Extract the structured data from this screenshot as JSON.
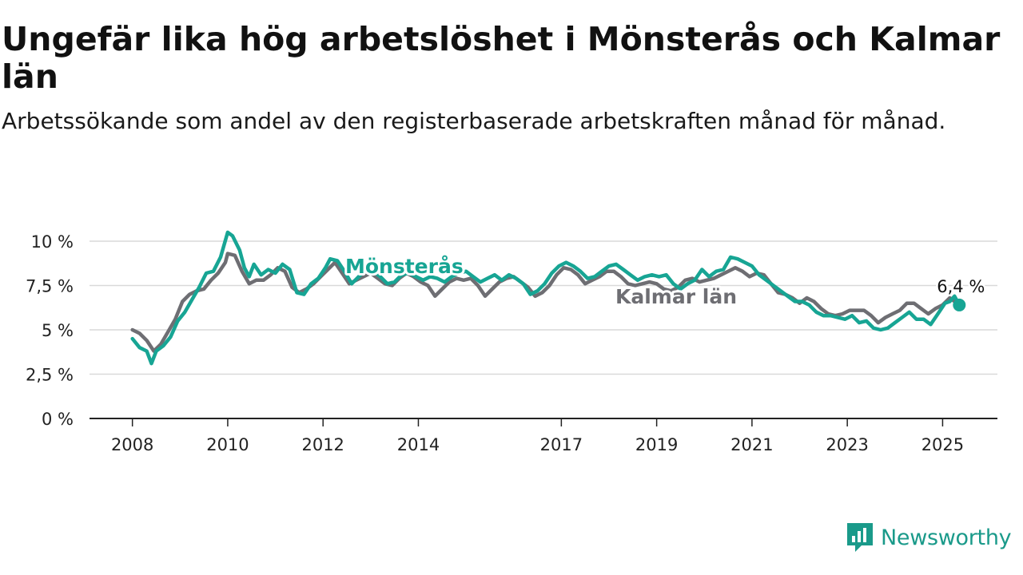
{
  "header": {
    "title": "Ungefär lika hög arbetslöshet i Mönsterås och Kalmar län",
    "subtitle": "Arbetssökande som andel av den registerbaserade arbetskraften månad för månad."
  },
  "brand": {
    "name": "Newsworthy",
    "icon": "newsworthy-logo-icon",
    "color": "#1a9a8a"
  },
  "chart_data": {
    "type": "line",
    "ylim": [
      0,
      10.5
    ],
    "y_ticks": [
      {
        "value": 0,
        "label": "0 %"
      },
      {
        "value": 2.5,
        "label": "2,5 %"
      },
      {
        "value": 5,
        "label": "5 %"
      },
      {
        "value": 7.5,
        "label": "7,5 %"
      },
      {
        "value": 10,
        "label": "10 %"
      }
    ],
    "x_ticks": [
      {
        "value": 2008,
        "label": "2008"
      },
      {
        "value": 2010,
        "label": "2010"
      },
      {
        "value": 2012,
        "label": "2012"
      },
      {
        "value": 2014,
        "label": "2014"
      },
      {
        "value": 2017,
        "label": "2017"
      },
      {
        "value": 2019,
        "label": "2019"
      },
      {
        "value": 2021,
        "label": "2021"
      },
      {
        "value": 2023,
        "label": "2023"
      },
      {
        "value": 2025,
        "label": "2025"
      }
    ],
    "xlim": [
      2007.1,
      2026.15
    ],
    "grid": true,
    "end_label": "6,4 %",
    "series": [
      {
        "name": "Kalmar län",
        "color": "#6e6e73",
        "label_position": "below",
        "points": [
          [
            2008.0,
            5.0
          ],
          [
            2008.15,
            4.8
          ],
          [
            2008.3,
            4.4
          ],
          [
            2008.45,
            3.8
          ],
          [
            2008.6,
            4.2
          ],
          [
            2008.75,
            4.9
          ],
          [
            2008.9,
            5.6
          ],
          [
            2009.05,
            6.6
          ],
          [
            2009.2,
            7.0
          ],
          [
            2009.35,
            7.2
          ],
          [
            2009.5,
            7.3
          ],
          [
            2009.65,
            7.8
          ],
          [
            2009.8,
            8.2
          ],
          [
            2009.95,
            8.8
          ],
          [
            2010.0,
            9.3
          ],
          [
            2010.15,
            9.2
          ],
          [
            2010.3,
            8.3
          ],
          [
            2010.45,
            7.6
          ],
          [
            2010.6,
            7.8
          ],
          [
            2010.75,
            7.8
          ],
          [
            2010.9,
            8.1
          ],
          [
            2011.05,
            8.5
          ],
          [
            2011.2,
            8.3
          ],
          [
            2011.35,
            7.4
          ],
          [
            2011.5,
            7.1
          ],
          [
            2011.65,
            7.3
          ],
          [
            2011.8,
            7.6
          ],
          [
            2011.95,
            8.0
          ],
          [
            2012.1,
            8.4
          ],
          [
            2012.25,
            8.8
          ],
          [
            2012.4,
            8.2
          ],
          [
            2012.55,
            7.6
          ],
          [
            2012.7,
            7.8
          ],
          [
            2012.85,
            8.0
          ],
          [
            2013.0,
            8.2
          ],
          [
            2013.15,
            7.9
          ],
          [
            2013.3,
            7.6
          ],
          [
            2013.45,
            7.5
          ],
          [
            2013.6,
            7.9
          ],
          [
            2013.75,
            8.2
          ],
          [
            2013.9,
            8.0
          ],
          [
            2014.05,
            7.7
          ],
          [
            2014.2,
            7.5
          ],
          [
            2014.35,
            6.9
          ],
          [
            2014.5,
            7.3
          ],
          [
            2014.65,
            7.7
          ],
          [
            2014.8,
            7.9
          ],
          [
            2014.95,
            7.8
          ],
          [
            2015.1,
            7.9
          ],
          [
            2015.25,
            7.5
          ],
          [
            2015.4,
            6.9
          ],
          [
            2015.55,
            7.3
          ],
          [
            2015.7,
            7.7
          ],
          [
            2015.85,
            7.9
          ],
          [
            2016.0,
            8.0
          ],
          [
            2016.15,
            7.7
          ],
          [
            2016.3,
            7.4
          ],
          [
            2016.45,
            6.9
          ],
          [
            2016.6,
            7.1
          ],
          [
            2016.75,
            7.5
          ],
          [
            2016.9,
            8.1
          ],
          [
            2017.05,
            8.5
          ],
          [
            2017.2,
            8.4
          ],
          [
            2017.35,
            8.1
          ],
          [
            2017.5,
            7.6
          ],
          [
            2017.65,
            7.8
          ],
          [
            2017.8,
            8.0
          ],
          [
            2017.95,
            8.3
          ],
          [
            2018.1,
            8.3
          ],
          [
            2018.25,
            8.0
          ],
          [
            2018.4,
            7.6
          ],
          [
            2018.55,
            7.5
          ],
          [
            2018.7,
            7.6
          ],
          [
            2018.85,
            7.7
          ],
          [
            2019.0,
            7.6
          ],
          [
            2019.15,
            7.3
          ],
          [
            2019.3,
            7.2
          ],
          [
            2019.45,
            7.4
          ],
          [
            2019.6,
            7.8
          ],
          [
            2019.75,
            7.9
          ],
          [
            2019.9,
            7.7
          ],
          [
            2020.05,
            7.8
          ],
          [
            2020.2,
            7.9
          ],
          [
            2020.35,
            8.1
          ],
          [
            2020.5,
            8.3
          ],
          [
            2020.65,
            8.5
          ],
          [
            2020.8,
            8.3
          ],
          [
            2020.95,
            8.0
          ],
          [
            2021.1,
            8.2
          ],
          [
            2021.25,
            8.1
          ],
          [
            2021.4,
            7.6
          ],
          [
            2021.55,
            7.1
          ],
          [
            2021.7,
            7.0
          ],
          [
            2021.85,
            6.8
          ],
          [
            2022.0,
            6.5
          ],
          [
            2022.15,
            6.8
          ],
          [
            2022.3,
            6.6
          ],
          [
            2022.45,
            6.2
          ],
          [
            2022.6,
            5.9
          ],
          [
            2022.75,
            5.8
          ],
          [
            2022.9,
            5.9
          ],
          [
            2023.05,
            6.1
          ],
          [
            2023.2,
            6.1
          ],
          [
            2023.35,
            6.1
          ],
          [
            2023.5,
            5.8
          ],
          [
            2023.65,
            5.4
          ],
          [
            2023.8,
            5.7
          ],
          [
            2023.95,
            5.9
          ],
          [
            2024.1,
            6.1
          ],
          [
            2024.25,
            6.5
          ],
          [
            2024.4,
            6.5
          ],
          [
            2024.55,
            6.2
          ],
          [
            2024.7,
            5.9
          ],
          [
            2024.85,
            6.2
          ],
          [
            2025.0,
            6.4
          ],
          [
            2025.15,
            6.8
          ],
          [
            2025.25,
            6.6
          ]
        ]
      },
      {
        "name": "Mönsterås",
        "color": "#17a594",
        "label_position": "above",
        "points": [
          [
            2008.0,
            4.5
          ],
          [
            2008.15,
            4.0
          ],
          [
            2008.3,
            3.8
          ],
          [
            2008.4,
            3.1
          ],
          [
            2008.5,
            3.8
          ],
          [
            2008.65,
            4.1
          ],
          [
            2008.8,
            4.6
          ],
          [
            2008.95,
            5.5
          ],
          [
            2009.1,
            6.0
          ],
          [
            2009.25,
            6.7
          ],
          [
            2009.4,
            7.4
          ],
          [
            2009.55,
            8.2
          ],
          [
            2009.7,
            8.3
          ],
          [
            2009.85,
            9.1
          ],
          [
            2010.0,
            10.5
          ],
          [
            2010.1,
            10.3
          ],
          [
            2010.25,
            9.5
          ],
          [
            2010.35,
            8.5
          ],
          [
            2010.45,
            8.0
          ],
          [
            2010.55,
            8.7
          ],
          [
            2010.7,
            8.1
          ],
          [
            2010.85,
            8.4
          ],
          [
            2011.0,
            8.2
          ],
          [
            2011.15,
            8.7
          ],
          [
            2011.3,
            8.4
          ],
          [
            2011.45,
            7.1
          ],
          [
            2011.6,
            7.0
          ],
          [
            2011.75,
            7.6
          ],
          [
            2011.9,
            7.9
          ],
          [
            2012.05,
            8.5
          ],
          [
            2012.15,
            9.0
          ],
          [
            2012.3,
            8.9
          ],
          [
            2012.45,
            8.3
          ],
          [
            2012.6,
            7.6
          ],
          [
            2012.75,
            8.0
          ],
          [
            2012.9,
            8.4
          ],
          [
            2013.05,
            8.3
          ],
          [
            2013.2,
            8.0
          ],
          [
            2013.35,
            7.6
          ],
          [
            2013.5,
            7.7
          ],
          [
            2013.65,
            8.1
          ],
          [
            2013.8,
            8.2
          ],
          [
            2013.95,
            8.0
          ],
          [
            2014.1,
            7.8
          ],
          [
            2014.25,
            8.0
          ],
          [
            2014.4,
            7.9
          ],
          [
            2014.55,
            7.7
          ],
          [
            2014.7,
            8.0
          ],
          [
            2014.85,
            8.2
          ],
          [
            2015.0,
            8.3
          ],
          [
            2015.15,
            8.0
          ],
          [
            2015.3,
            7.7
          ],
          [
            2015.45,
            7.9
          ],
          [
            2015.6,
            8.1
          ],
          [
            2015.75,
            7.8
          ],
          [
            2015.9,
            8.1
          ],
          [
            2016.05,
            7.9
          ],
          [
            2016.2,
            7.6
          ],
          [
            2016.35,
            7.0
          ],
          [
            2016.5,
            7.2
          ],
          [
            2016.65,
            7.6
          ],
          [
            2016.8,
            8.2
          ],
          [
            2016.95,
            8.6
          ],
          [
            2017.1,
            8.8
          ],
          [
            2017.25,
            8.6
          ],
          [
            2017.4,
            8.3
          ],
          [
            2017.55,
            7.9
          ],
          [
            2017.7,
            8.0
          ],
          [
            2017.85,
            8.3
          ],
          [
            2018.0,
            8.6
          ],
          [
            2018.15,
            8.7
          ],
          [
            2018.3,
            8.4
          ],
          [
            2018.45,
            8.1
          ],
          [
            2018.6,
            7.8
          ],
          [
            2018.75,
            8.0
          ],
          [
            2018.9,
            8.1
          ],
          [
            2019.05,
            8.0
          ],
          [
            2019.2,
            8.1
          ],
          [
            2019.35,
            7.6
          ],
          [
            2019.5,
            7.3
          ],
          [
            2019.65,
            7.6
          ],
          [
            2019.8,
            7.8
          ],
          [
            2019.95,
            8.4
          ],
          [
            2020.1,
            8.0
          ],
          [
            2020.25,
            8.3
          ],
          [
            2020.4,
            8.4
          ],
          [
            2020.55,
            9.1
          ],
          [
            2020.7,
            9.0
          ],
          [
            2020.85,
            8.8
          ],
          [
            2021.0,
            8.6
          ],
          [
            2021.15,
            8.1
          ],
          [
            2021.3,
            7.8
          ],
          [
            2021.45,
            7.5
          ],
          [
            2021.6,
            7.2
          ],
          [
            2021.75,
            6.9
          ],
          [
            2021.9,
            6.6
          ],
          [
            2022.05,
            6.6
          ],
          [
            2022.2,
            6.4
          ],
          [
            2022.35,
            6.0
          ],
          [
            2022.5,
            5.8
          ],
          [
            2022.65,
            5.8
          ],
          [
            2022.8,
            5.7
          ],
          [
            2022.95,
            5.6
          ],
          [
            2023.1,
            5.8
          ],
          [
            2023.25,
            5.4
          ],
          [
            2023.4,
            5.5
          ],
          [
            2023.55,
            5.1
          ],
          [
            2023.7,
            5.0
          ],
          [
            2023.85,
            5.1
          ],
          [
            2024.0,
            5.4
          ],
          [
            2024.15,
            5.7
          ],
          [
            2024.3,
            6.0
          ],
          [
            2024.45,
            5.6
          ],
          [
            2024.6,
            5.6
          ],
          [
            2024.75,
            5.3
          ],
          [
            2024.9,
            5.9
          ],
          [
            2025.05,
            6.5
          ],
          [
            2025.15,
            6.6
          ],
          [
            2025.25,
            6.9
          ],
          [
            2025.35,
            6.4
          ]
        ]
      }
    ]
  }
}
